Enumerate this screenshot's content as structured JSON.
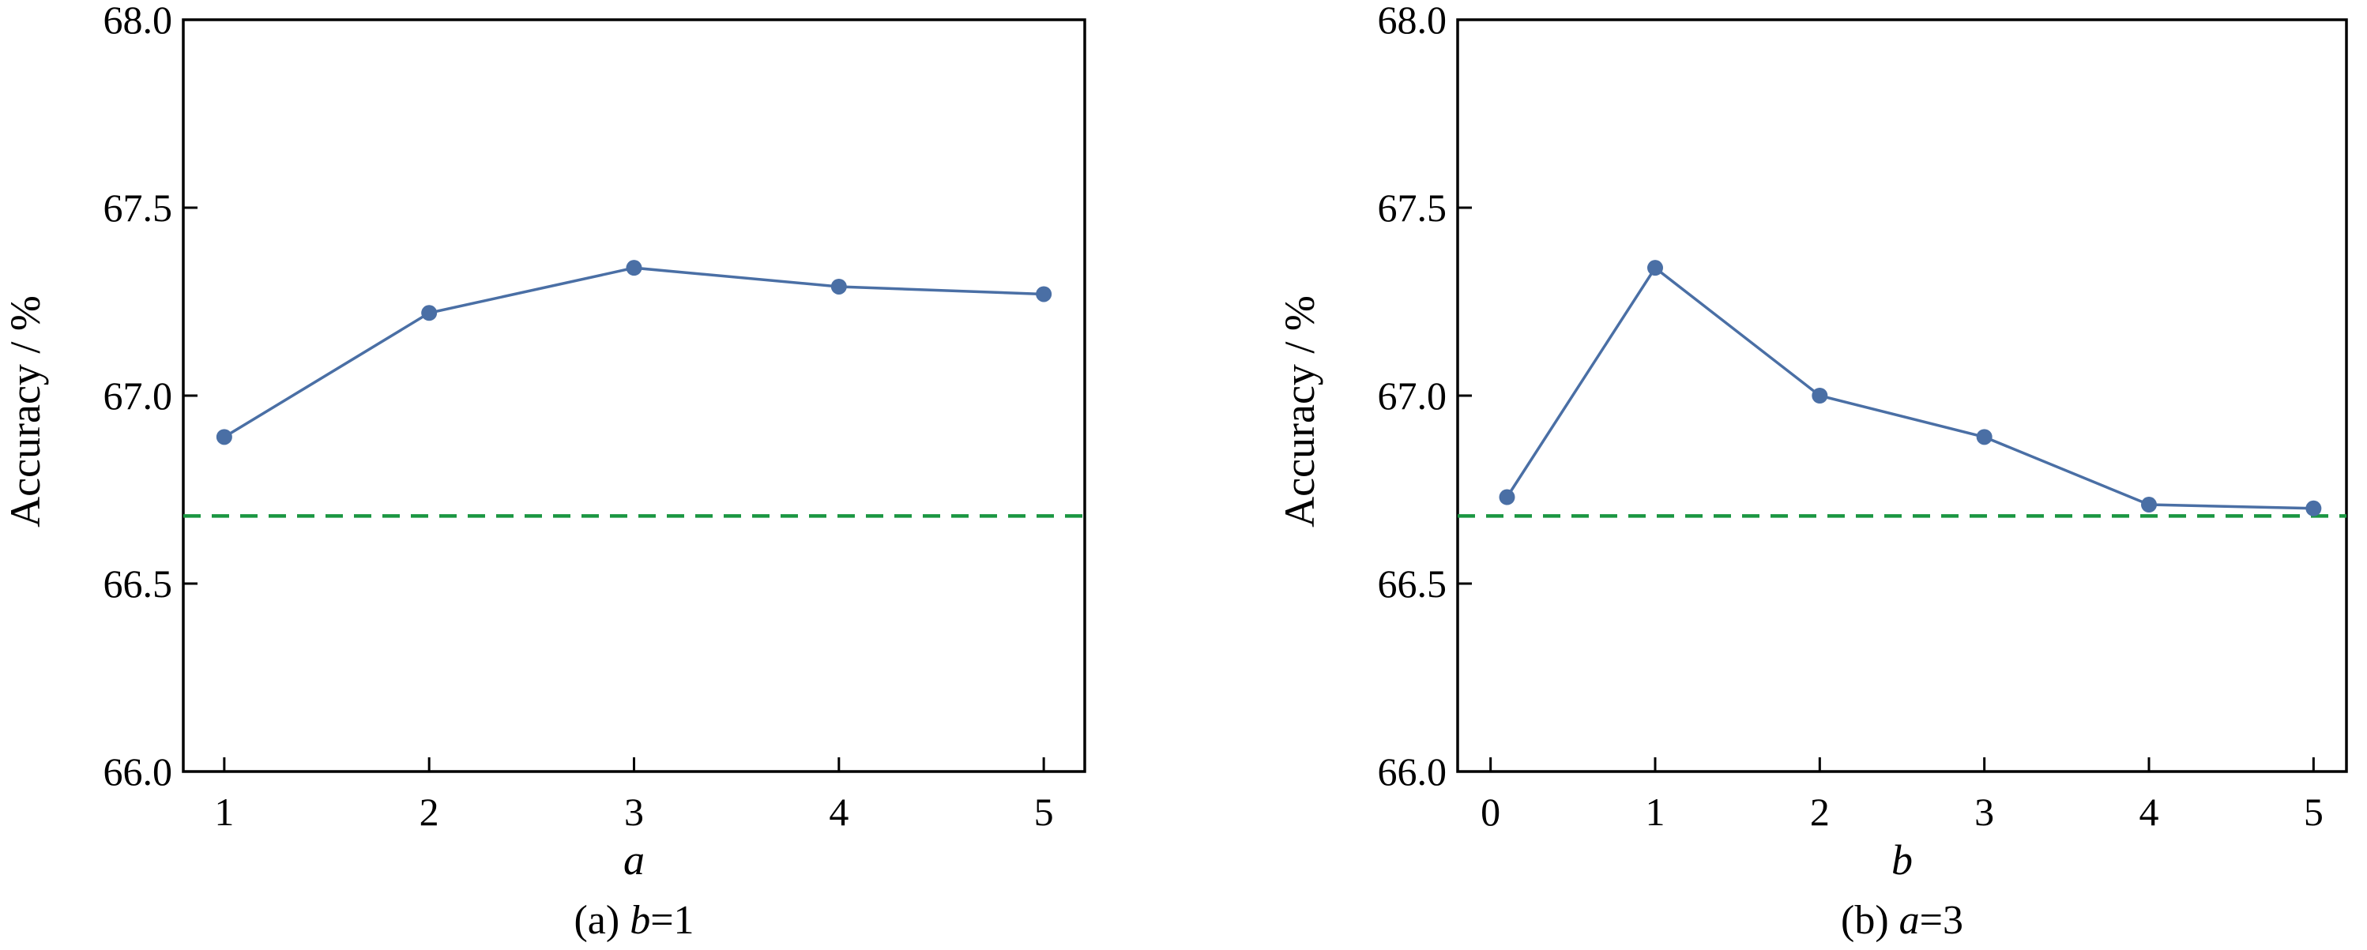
{
  "chart_data": [
    {
      "type": "line",
      "panel_id": "a",
      "caption_prefix": "(a) ",
      "caption_var": "b",
      "caption_suffix": "=1",
      "xlabel": "a",
      "ylabel": "Accuracy / %",
      "xlim": [
        0.8,
        5.2
      ],
      "ylim": [
        66.0,
        68.0
      ],
      "xticks": [
        1,
        2,
        3,
        4,
        5
      ],
      "xtick_labels": [
        "1",
        "2",
        "3",
        "4",
        "5"
      ],
      "yticks": [
        66.0,
        66.5,
        67.0,
        67.5,
        68.0
      ],
      "ytick_labels": [
        "66.0",
        "66.5",
        "67.0",
        "67.5",
        "68.0"
      ],
      "series": [
        {
          "x": [
            1,
            2,
            3,
            4,
            5
          ],
          "values": [
            66.89,
            67.22,
            67.34,
            67.29,
            67.27
          ],
          "color": "#4a6fa5",
          "marker": "circle"
        }
      ],
      "baseline": {
        "y": 66.68,
        "color": "#1a9641",
        "style": "dashed"
      },
      "grid": false,
      "legend": "none"
    },
    {
      "type": "line",
      "panel_id": "b",
      "caption_prefix": "(b) ",
      "caption_var": "a",
      "caption_suffix": "=3",
      "xlabel": "b",
      "ylabel": "Accuracy / %",
      "xlim": [
        -0.2,
        5.2
      ],
      "ylim": [
        66.0,
        68.0
      ],
      "xticks": [
        0,
        1,
        2,
        3,
        4,
        5
      ],
      "xtick_labels": [
        "0",
        "1",
        "2",
        "3",
        "4",
        "5"
      ],
      "yticks": [
        66.0,
        66.5,
        67.0,
        67.5,
        68.0
      ],
      "ytick_labels": [
        "66.0",
        "66.5",
        "67.0",
        "67.5",
        "68.0"
      ],
      "series": [
        {
          "x": [
            0.1,
            1,
            2,
            3,
            4,
            5
          ],
          "values": [
            66.73,
            67.34,
            67.0,
            66.89,
            66.71,
            66.7
          ],
          "color": "#4a6fa5",
          "marker": "circle"
        }
      ],
      "baseline": {
        "y": 66.68,
        "color": "#1a9641",
        "style": "dashed"
      },
      "grid": false,
      "legend": "none"
    }
  ]
}
